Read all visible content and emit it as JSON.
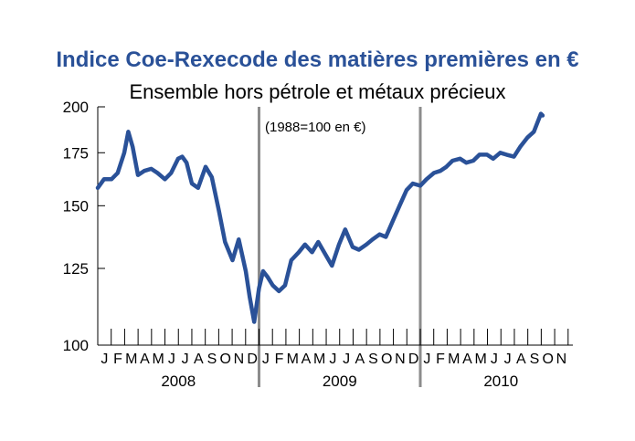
{
  "chart_data": {
    "type": "line",
    "title": "Indice Coe-Rexecode des matières premières en €",
    "subtitle": "Ensemble hors pétrole et métaux précieux",
    "annotation": "(1988=100 en €)",
    "y_scale": "log",
    "ylim": [
      100,
      200
    ],
    "yticks": [
      100,
      125,
      150,
      175,
      200
    ],
    "grid": false,
    "line_color": "#2a5198",
    "separator_color": "#8c8c8c",
    "years": [
      {
        "label": "2008",
        "months": [
          "J",
          "F",
          "M",
          "A",
          "M",
          "J",
          "J",
          "A",
          "S",
          "O",
          "N",
          "D"
        ]
      },
      {
        "label": "2009",
        "months": [
          "J",
          "F",
          "M",
          "A",
          "M",
          "J",
          "J",
          "A",
          "S",
          "O",
          "N",
          "D"
        ]
      },
      {
        "label": "2010",
        "months": [
          "J",
          "F",
          "M",
          "A",
          "M",
          "J",
          "J",
          "A",
          "S",
          "O",
          "N"
        ]
      }
    ],
    "series": [
      {
        "name": "",
        "x": [
          "2008-01-01",
          "2008-01-15",
          "2008-02-01",
          "2008-02-15",
          "2008-03-01",
          "2008-03-10",
          "2008-03-20",
          "2008-04-01",
          "2008-04-15",
          "2008-05-01",
          "2008-05-15",
          "2008-06-01",
          "2008-06-15",
          "2008-07-01",
          "2008-07-10",
          "2008-07-20",
          "2008-08-01",
          "2008-08-15",
          "2008-09-01",
          "2008-09-15",
          "2008-10-01",
          "2008-10-15",
          "2008-11-01",
          "2008-11-15",
          "2008-12-01",
          "2008-12-10",
          "2008-12-20",
          "2009-01-01",
          "2009-01-10",
          "2009-01-20",
          "2009-02-01",
          "2009-02-15",
          "2009-03-01",
          "2009-03-15",
          "2009-04-01",
          "2009-04-15",
          "2009-05-01",
          "2009-05-15",
          "2009-06-01",
          "2009-06-15",
          "2009-07-01",
          "2009-07-15",
          "2009-08-01",
          "2009-08-15",
          "2009-09-01",
          "2009-09-15",
          "2009-10-01",
          "2009-10-15",
          "2009-11-01",
          "2009-11-15",
          "2009-12-01",
          "2009-12-15",
          "2010-01-01",
          "2010-01-15",
          "2010-02-01",
          "2010-02-15",
          "2010-03-01",
          "2010-03-15",
          "2010-04-01",
          "2010-04-15",
          "2010-05-01",
          "2010-05-15",
          "2010-06-01",
          "2010-06-15",
          "2010-07-01",
          "2010-07-15",
          "2010-08-01",
          "2010-08-15",
          "2010-09-01",
          "2010-09-15",
          "2010-10-01",
          "2010-10-05"
        ],
        "y": [
          158,
          162,
          162,
          165,
          175,
          186,
          178,
          164,
          166,
          167,
          165,
          162,
          165,
          172,
          173,
          170,
          160,
          158,
          168,
          163,
          148,
          135,
          128,
          136,
          124,
          115,
          107,
          118,
          124,
          122,
          119,
          117,
          119,
          128,
          131,
          134,
          131,
          135,
          130,
          126,
          134,
          140,
          133,
          132,
          134,
          136,
          138,
          137,
          144,
          150,
          157,
          160,
          159,
          162,
          165,
          166,
          168,
          171,
          172,
          170,
          171,
          174,
          174,
          172,
          175,
          174,
          173,
          178,
          183,
          186,
          196,
          195
        ]
      }
    ]
  }
}
